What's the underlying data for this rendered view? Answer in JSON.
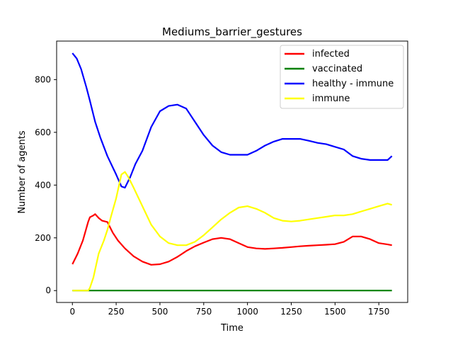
{
  "chart_data": {
    "type": "line",
    "title": "Mediums_barrier_gestures",
    "xlabel": "Time",
    "ylabel": "Number of agents",
    "xlim": [
      -90,
      1915
    ],
    "ylim": [
      -45,
      946
    ],
    "xticks": [
      0,
      250,
      500,
      750,
      1000,
      1250,
      1500,
      1750
    ],
    "yticks": [
      0,
      200,
      400,
      600,
      800
    ],
    "grid": false,
    "legend_position": "upper right",
    "series": [
      {
        "name": "infected",
        "color": "#ff0000",
        "x": [
          0,
          30,
          60,
          90,
          100,
          120,
          130,
          150,
          170,
          200,
          230,
          260,
          300,
          350,
          400,
          450,
          500,
          550,
          600,
          650,
          700,
          750,
          800,
          850,
          900,
          950,
          1000,
          1050,
          1100,
          1150,
          1200,
          1250,
          1300,
          1350,
          1400,
          1450,
          1500,
          1550,
          1600,
          1650,
          1700,
          1750,
          1800,
          1825
        ],
        "y": [
          100,
          140,
          190,
          260,
          278,
          285,
          290,
          275,
          265,
          260,
          220,
          190,
          160,
          130,
          110,
          98,
          100,
          110,
          128,
          150,
          168,
          182,
          195,
          200,
          195,
          180,
          165,
          160,
          158,
          160,
          162,
          165,
          168,
          170,
          172,
          174,
          176,
          185,
          205,
          205,
          195,
          180,
          175,
          172
        ]
      },
      {
        "name": "vaccinated",
        "color": "#008000",
        "x": [
          0,
          1825
        ],
        "y": [
          0,
          0
        ]
      },
      {
        "name": "healthy - immune",
        "color": "#0000ff",
        "x": [
          0,
          25,
          50,
          80,
          100,
          130,
          160,
          200,
          250,
          280,
          300,
          330,
          360,
          400,
          450,
          500,
          550,
          600,
          650,
          700,
          750,
          800,
          850,
          900,
          950,
          1000,
          1050,
          1100,
          1150,
          1200,
          1250,
          1300,
          1350,
          1400,
          1450,
          1500,
          1550,
          1600,
          1650,
          1700,
          1750,
          1800,
          1825
        ],
        "y": [
          900,
          880,
          840,
          770,
          720,
          640,
          580,
          510,
          440,
          395,
          390,
          430,
          480,
          530,
          620,
          680,
          700,
          705,
          690,
          640,
          590,
          550,
          525,
          515,
          515,
          515,
          530,
          550,
          565,
          575,
          575,
          575,
          568,
          560,
          555,
          545,
          535,
          510,
          500,
          495,
          495,
          495,
          510
        ]
      },
      {
        "name": "immune",
        "color": "#ffff00",
        "x": [
          0,
          50,
          90,
          100,
          120,
          150,
          180,
          200,
          220,
          250,
          280,
          300,
          320,
          350,
          400,
          450,
          500,
          550,
          600,
          650,
          700,
          750,
          800,
          850,
          900,
          950,
          1000,
          1050,
          1100,
          1150,
          1200,
          1250,
          1300,
          1350,
          1400,
          1450,
          1500,
          1550,
          1600,
          1650,
          1700,
          1750,
          1800,
          1825
        ],
        "y": [
          0,
          0,
          0,
          10,
          50,
          140,
          190,
          230,
          280,
          350,
          440,
          450,
          430,
          390,
          320,
          250,
          205,
          180,
          172,
          172,
          185,
          210,
          240,
          270,
          295,
          315,
          320,
          310,
          295,
          275,
          265,
          262,
          265,
          270,
          275,
          280,
          285,
          285,
          290,
          300,
          310,
          320,
          330,
          325
        ]
      }
    ]
  }
}
